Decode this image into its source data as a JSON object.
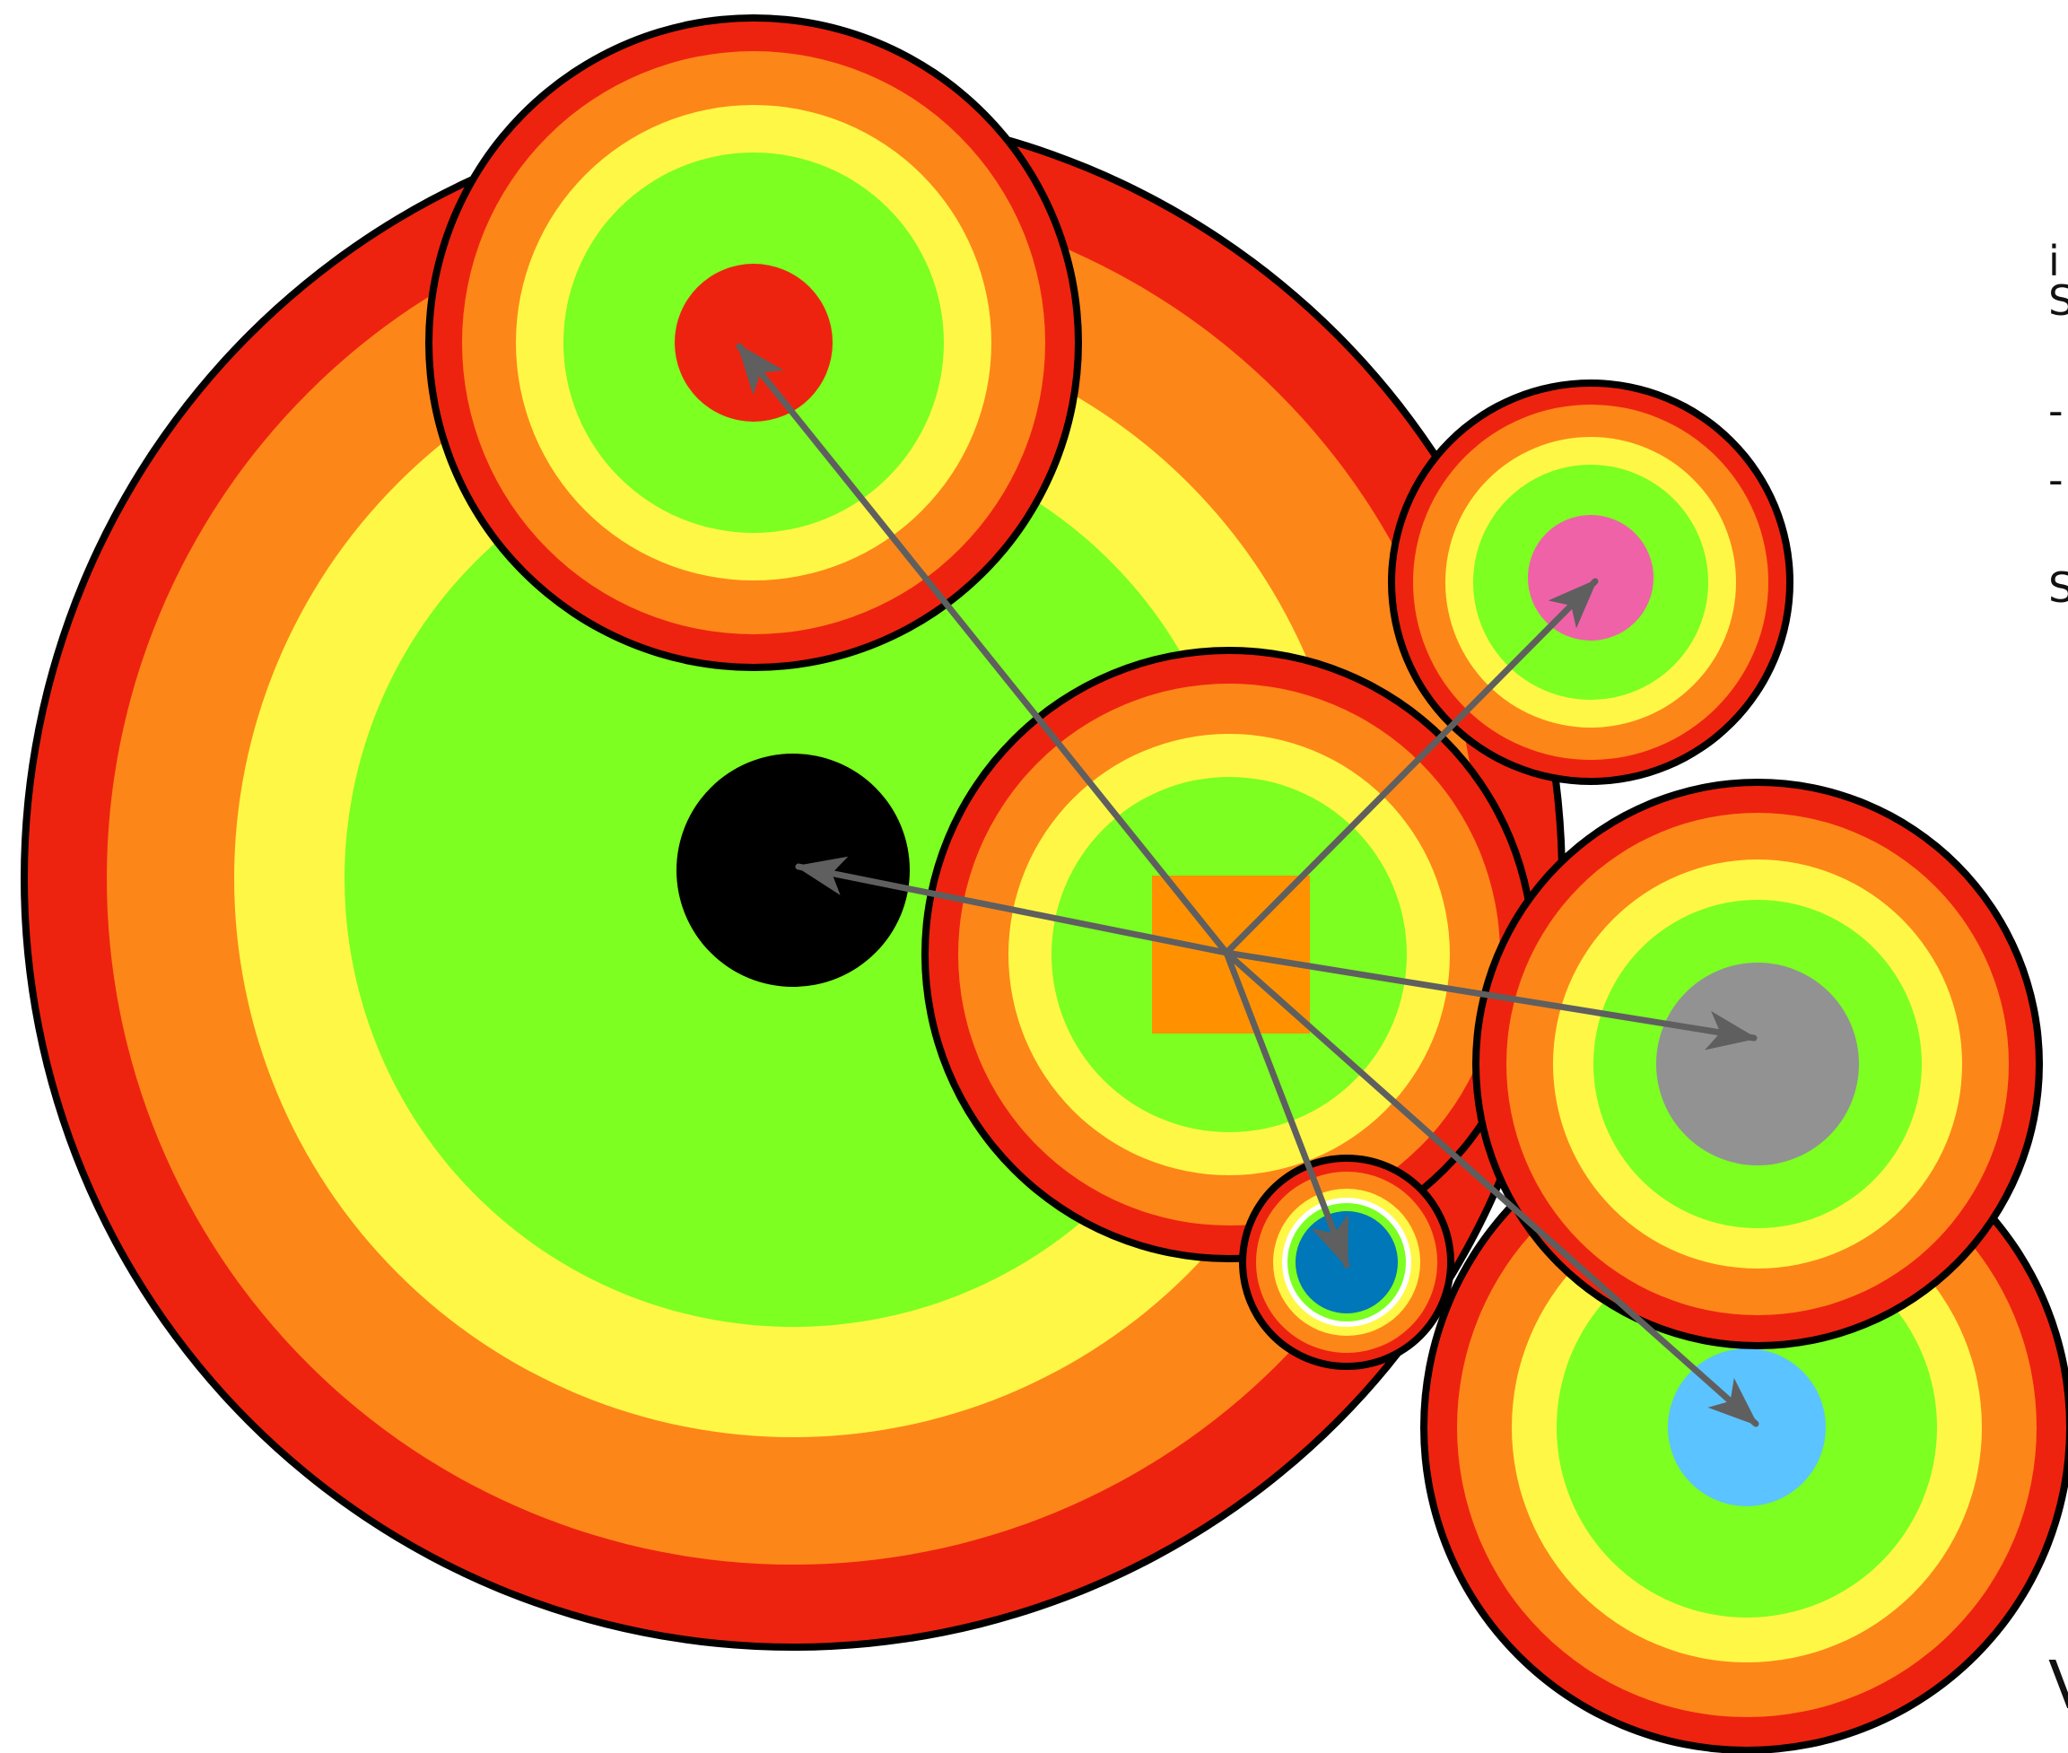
{
  "diagram": {
    "background": "#ffffff",
    "ring_colors": {
      "outline": "#000000",
      "red": "#ee230f",
      "orange": "#fd8619",
      "yellow": "#fff745",
      "green": "#7cff21"
    },
    "arrow_color": "#5f5f5f",
    "hub": {
      "name": "center-hub",
      "core_shape": "square",
      "core_color": "#ff9100"
    },
    "nodes": [
      {
        "name": "large-background-node",
        "core_color": "#000000",
        "core_shape": "circle"
      },
      {
        "name": "top-node",
        "core_color": "#ee230f",
        "core_shape": "circle"
      },
      {
        "name": "pink-node",
        "core_color": "#ef62a8",
        "core_shape": "circle"
      },
      {
        "name": "gray-node",
        "core_color": "#929292",
        "core_shape": "circle"
      },
      {
        "name": "light-blue-node",
        "core_color": "#5bc3ff",
        "core_shape": "circle"
      },
      {
        "name": "blue-node",
        "core_color": "#0077b8",
        "core_shape": "circle"
      }
    ],
    "edges": [
      {
        "from": "center-hub",
        "to": "top-node"
      },
      {
        "from": "center-hub",
        "to": "large-background-node"
      },
      {
        "from": "center-hub",
        "to": "pink-node"
      },
      {
        "from": "center-hub",
        "to": "gray-node"
      },
      {
        "from": "center-hub",
        "to": "light-blue-node"
      },
      {
        "from": "center-hub",
        "to": "blue-node"
      }
    ],
    "edge_text": [
      "i",
      "S",
      "-",
      "-",
      "S",
      "V"
    ]
  }
}
